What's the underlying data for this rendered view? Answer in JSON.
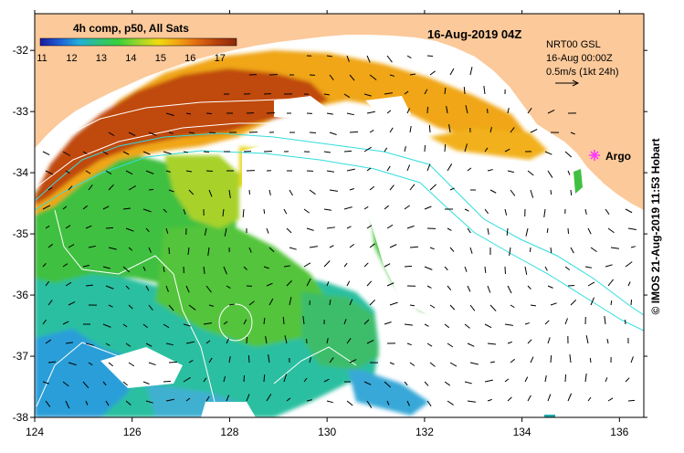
{
  "legend": {
    "title": "4h comp, p50, All Sats",
    "ticks": [
      "11",
      "12",
      "13",
      "14",
      "15",
      "16",
      "17"
    ],
    "gradient": [
      "#1a1aa0",
      "#1f5fd6",
      "#22b0d8",
      "#2fc27a",
      "#39d03a",
      "#9ad62a",
      "#f0dc10",
      "#f2a414",
      "#e06a10",
      "#b8400c",
      "#8a2a0a"
    ]
  },
  "timestamp": "16-Aug-2019 04Z",
  "current_info": {
    "model": "NRT00 GSL",
    "date": "16-Aug 00:00Z",
    "scale": "0.5m/s (1kt 24h)"
  },
  "argo_label": "Argo",
  "x_axis": {
    "ticks": [
      "124",
      "126",
      "128",
      "130",
      "132",
      "134",
      "136"
    ]
  },
  "y_axis": {
    "ticks": [
      "-32",
      "-33",
      "-34",
      "-35",
      "-36",
      "-37",
      "-38"
    ]
  },
  "copyright": "© IMOS 21-Aug-2019 11:53 Hobart",
  "colors": {
    "land": "#fcc99a",
    "frame": "#000000",
    "contours": "#ffffff",
    "isobath": "#33dddd",
    "argo": "#ff33ff",
    "ocean_no_data": "#ffffff"
  },
  "map_extent": {
    "lon": [
      124,
      136.5
    ],
    "lat": [
      -38,
      -31.4
    ]
  }
}
